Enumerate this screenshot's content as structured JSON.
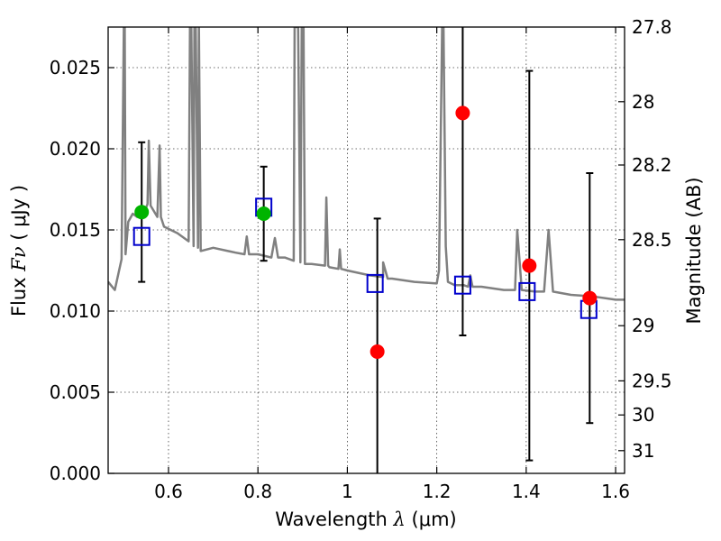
{
  "chart_data": {
    "type": "scatter",
    "xlabel": "Wavelength",
    "xlabel_symbol": "λ",
    "xlabel_unit": "(μm)",
    "ylabel": "Flux",
    "ylabel_symbol": "Fν",
    "ylabel_unit": "( μJy )",
    "ylabel_right": "Magnitude (AB)",
    "xlim": [
      0.465,
      1.62
    ],
    "ylim": [
      0.0,
      0.0275
    ],
    "grid": true,
    "x_ticks": [
      0.6,
      0.8,
      1.0,
      1.2,
      1.4,
      1.6
    ],
    "x_tick_labels": [
      "0.6",
      "0.8",
      "1",
      "1.2",
      "1.4",
      "1.6"
    ],
    "y_ticks": [
      0.0,
      0.005,
      0.01,
      0.015,
      0.02,
      0.025
    ],
    "y_tick_labels": [
      "0.000",
      "0.005",
      "0.010",
      "0.015",
      "0.020",
      "0.025"
    ],
    "right_ticks": [
      {
        "label": "27.8",
        "flux": 0.0275
      },
      {
        "label": "28",
        "flux": 0.0229
      },
      {
        "label": "28.2",
        "flux": 0.019
      },
      {
        "label": "28.5",
        "flux": 0.0144
      },
      {
        "label": "29",
        "flux": 0.0091
      },
      {
        "label": "29.5",
        "flux": 0.0057
      },
      {
        "label": "30",
        "flux": 0.0036
      },
      {
        "label": "31",
        "flux": 0.0014
      }
    ],
    "series": [
      {
        "name": "model spectrum",
        "style": "line",
        "color": "#808080",
        "x": [
          0.465,
          0.48,
          0.495,
          0.5,
          0.502,
          0.504,
          0.51,
          0.52,
          0.53,
          0.545,
          0.553,
          0.556,
          0.56,
          0.575,
          0.58,
          0.583,
          0.59,
          0.62,
          0.645,
          0.648,
          0.651,
          0.656,
          0.658,
          0.661,
          0.666,
          0.668,
          0.672,
          0.7,
          0.75,
          0.77,
          0.775,
          0.78,
          0.8,
          0.83,
          0.838,
          0.845,
          0.86,
          0.88,
          0.882,
          0.885,
          0.89,
          0.895,
          0.898,
          0.902,
          0.905,
          0.92,
          0.95,
          0.953,
          0.957,
          0.96,
          0.98,
          0.983,
          0.986,
          1.0,
          1.05,
          1.08,
          1.08,
          1.09,
          1.1,
          1.15,
          1.2,
          1.205,
          1.212,
          1.215,
          1.22,
          1.225,
          1.24,
          1.26,
          1.27,
          1.275,
          1.28,
          1.3,
          1.35,
          1.375,
          1.38,
          1.39,
          1.42,
          1.44,
          1.45,
          1.46,
          1.5,
          1.55,
          1.6,
          1.62
        ],
        "y": [
          0.0118,
          0.0113,
          0.0132,
          0.0275,
          0.0275,
          0.0135,
          0.0155,
          0.016,
          0.0158,
          0.016,
          0.0166,
          0.0205,
          0.0165,
          0.0158,
          0.0202,
          0.0158,
          0.0152,
          0.0148,
          0.0143,
          0.0275,
          0.0275,
          0.014,
          0.0275,
          0.0275,
          0.0139,
          0.0275,
          0.0137,
          0.0139,
          0.0136,
          0.0135,
          0.0146,
          0.0135,
          0.0135,
          0.0133,
          0.0145,
          0.0133,
          0.0133,
          0.0131,
          0.0275,
          0.0275,
          0.0275,
          0.013,
          0.0275,
          0.0275,
          0.0129,
          0.0129,
          0.0128,
          0.017,
          0.0128,
          0.0127,
          0.0126,
          0.0138,
          0.0126,
          0.0125,
          0.0122,
          0.0121,
          0.013,
          0.012,
          0.012,
          0.0118,
          0.0117,
          0.0125,
          0.0275,
          0.0275,
          0.014,
          0.0118,
          0.0116,
          0.0116,
          0.0115,
          0.0122,
          0.0115,
          0.0115,
          0.0113,
          0.0113,
          0.015,
          0.0113,
          0.0112,
          0.0112,
          0.015,
          0.0112,
          0.011,
          0.0109,
          0.0107,
          0.0107
        ]
      },
      {
        "name": "green observations",
        "style": "circle",
        "color": "#00b400",
        "x": [
          0.54,
          0.813
        ],
        "y": [
          0.0161,
          0.016
        ],
        "err": [
          0.0043,
          0.0029
        ]
      },
      {
        "name": "red observations",
        "style": "circle",
        "color": "#ff0000",
        "x": [
          1.067,
          1.258,
          1.407,
          1.542
        ],
        "y": [
          0.0075,
          0.0222,
          0.0128,
          0.0108
        ],
        "err": [
          0.0082,
          0.0137,
          0.012,
          0.0077
        ]
      },
      {
        "name": "model photometry",
        "style": "open-square",
        "color": "#0000cc",
        "x": [
          0.54,
          0.813,
          1.062,
          1.258,
          1.402,
          1.54
        ],
        "y": [
          0.0146,
          0.0164,
          0.0117,
          0.0116,
          0.0112,
          0.0101
        ]
      }
    ]
  }
}
